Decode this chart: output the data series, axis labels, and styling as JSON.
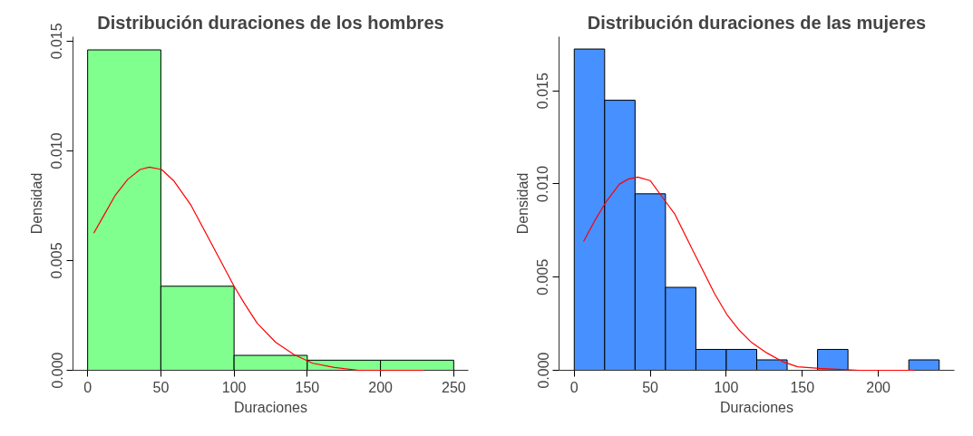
{
  "chart_data": [
    {
      "type": "histogram",
      "title": "Distribución duraciones de los hombres",
      "xlabel": "Duraciones",
      "ylabel": "Densidad",
      "bins": [
        0,
        50,
        100,
        150,
        200,
        250
      ],
      "xlim": [
        -10,
        260
      ],
      "ylim": [
        0,
        0.0152
      ],
      "xticks": [
        0,
        50,
        100,
        150,
        200,
        250
      ],
      "yticks": [
        {
          "value": 0,
          "label": "0.000"
        },
        {
          "value": 0.005,
          "label": "0.005"
        },
        {
          "value": 0.01,
          "label": "0.010"
        },
        {
          "value": 0.015,
          "label": "0.015"
        }
      ],
      "grid": false,
      "series": [
        {
          "color": "#80ff8f",
          "values": [
            0.0146,
            0.00383,
            0.00068,
            0.00046,
            0.00046
          ]
        },
        {
          "type": "line",
          "color": "#ff0000",
          "x": [
            4.2,
            11.6,
            19,
            27.4,
            35.8,
            42.1,
            50.5,
            59,
            70.6,
            82,
            92.7,
            100,
            107.4,
            115.8,
            128.5,
            141,
            153.7,
            168.5,
            185,
            206,
            229.6
          ],
          "values": [
            0.00625,
            0.00712,
            0.00799,
            0.0087,
            0.00915,
            0.00926,
            0.00915,
            0.00862,
            0.00752,
            0.00609,
            0.00475,
            0.00383,
            0.00301,
            0.00214,
            0.00127,
            0.00071,
            0.00032,
            0.00013,
            0,
            0,
            0
          ]
        }
      ]
    },
    {
      "type": "histogram",
      "title": "Distribución duraciones de las mujeres",
      "xlabel": "Duraciones",
      "ylabel": "Densidad",
      "bins": [
        0,
        20,
        40,
        60,
        80,
        100,
        120,
        140,
        160,
        180,
        200,
        220,
        240
      ],
      "xlim": [
        -10,
        250
      ],
      "ylim": [
        0,
        0.0179
      ],
      "xticks": [
        0,
        50,
        100,
        150,
        200
      ],
      "yticks": [
        {
          "value": 0,
          "label": "0.000"
        },
        {
          "value": 0.005,
          "label": "0.005"
        },
        {
          "value": 0.01,
          "label": "0.010"
        },
        {
          "value": 0.015,
          "label": "0.015"
        }
      ],
      "grid": false,
      "series": [
        {
          "color": "#4690ff",
          "values": [
            0.01724,
            0.01449,
            0.00947,
            0.00445,
            0.00112,
            0.00112,
            0.00056,
            0,
            0.00112,
            0,
            0,
            0.00056
          ]
        },
        {
          "type": "line",
          "color": "#ff0000",
          "x": [
            6.1,
            13.5,
            20.6,
            29.7,
            35.8,
            41.8,
            49.9,
            60,
            66,
            76.2,
            84.2,
            92.3,
            100.4,
            108.5,
            116.6,
            126.7,
            136.8,
            146.9,
            161,
            187.3,
            223.6
          ],
          "values": [
            0.00691,
            0.00803,
            0.009,
            0.00999,
            0.01027,
            0.01037,
            0.01018,
            0.00906,
            0.0084,
            0.00672,
            0.00542,
            0.00411,
            0.00299,
            0.00215,
            0.00149,
            0.00093,
            0.00047,
            0.00019,
            0.0001,
            0,
            0
          ]
        }
      ]
    }
  ]
}
